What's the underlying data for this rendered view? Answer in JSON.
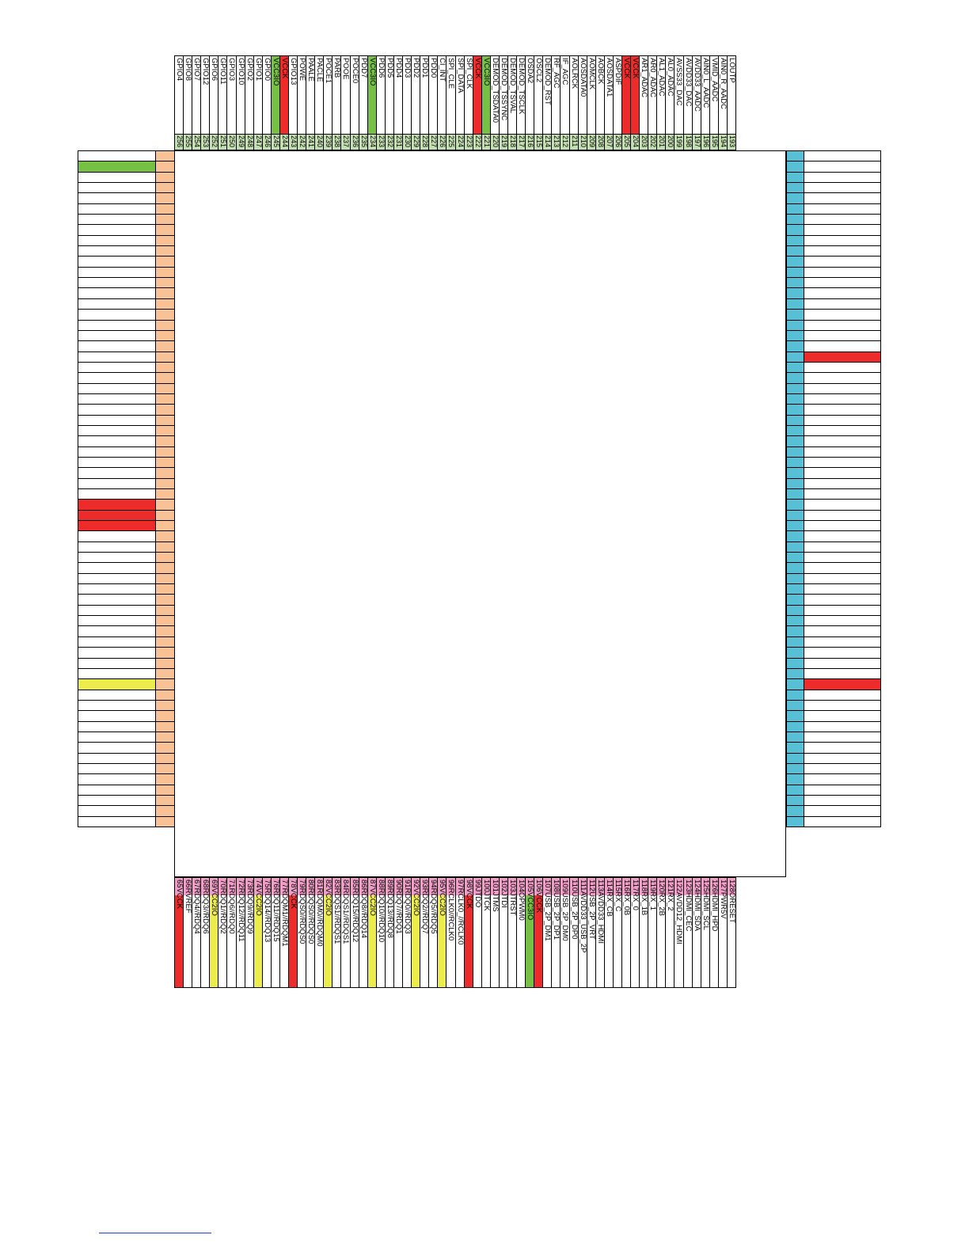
{
  "colors": {
    "red": "#ee2b2b",
    "green": "#76c043",
    "yellow": "#ecec4c",
    "top_pad": "#c3dfb1",
    "bottom_pad": "#f09ec8",
    "left_pad": "#f8c196",
    "right_pad": "#58c0d6",
    "white": "#ffffff"
  },
  "top_pins": [
    {
      "num": "256",
      "label": "GPIO4",
      "color": "white"
    },
    {
      "num": "255",
      "label": "GPIO8",
      "color": "white"
    },
    {
      "num": "254",
      "label": "GPIO7",
      "color": "white"
    },
    {
      "num": "253",
      "label": "GPIO12",
      "color": "white"
    },
    {
      "num": "252",
      "label": "GPIO6",
      "color": "white"
    },
    {
      "num": "251",
      "label": "GPIO11",
      "color": "white"
    },
    {
      "num": "250",
      "label": "GPIO3",
      "color": "white"
    },
    {
      "num": "249",
      "label": "GPIO10",
      "color": "white"
    },
    {
      "num": "248",
      "label": "GPIO2",
      "color": "white"
    },
    {
      "num": "247",
      "label": "GPIO1",
      "color": "white"
    },
    {
      "num": "246",
      "label": "GPIO0",
      "color": "white"
    },
    {
      "num": "245",
      "label": "VCC3IO",
      "color": "green"
    },
    {
      "num": "244",
      "label": "VCCK",
      "color": "red"
    },
    {
      "num": "243",
      "label": "GPIO13",
      "color": "white"
    },
    {
      "num": "242",
      "label": "POWE",
      "color": "white"
    },
    {
      "num": "241",
      "label": "PAALE",
      "color": "white"
    },
    {
      "num": "240",
      "label": "PACLE",
      "color": "white"
    },
    {
      "num": "239",
      "label": "POCE1",
      "color": "white"
    },
    {
      "num": "238",
      "label": "PARB",
      "color": "white"
    },
    {
      "num": "237",
      "label": "POOE",
      "color": "white"
    },
    {
      "num": "236",
      "label": "POCE0",
      "color": "white"
    },
    {
      "num": "235",
      "label": "PDD7",
      "color": "white"
    },
    {
      "num": "234",
      "label": "VCC3IO",
      "color": "green"
    },
    {
      "num": "233",
      "label": "PDD6",
      "color": "white"
    },
    {
      "num": "232",
      "label": "PDD5",
      "color": "white"
    },
    {
      "num": "231",
      "label": "PDD4",
      "color": "white"
    },
    {
      "num": "230",
      "label": "PDD3",
      "color": "white"
    },
    {
      "num": "229",
      "label": "PDD2",
      "color": "white"
    },
    {
      "num": "228",
      "label": "PDD1",
      "color": "white"
    },
    {
      "num": "227",
      "label": "PDD0",
      "color": "white"
    },
    {
      "num": "226",
      "label": "CI_INT",
      "color": "white"
    },
    {
      "num": "225",
      "label": "SPI_CLE",
      "color": "white"
    },
    {
      "num": "224",
      "label": "SPI_DATA",
      "color": "white"
    },
    {
      "num": "223",
      "label": "SPI_CLK",
      "color": "white"
    },
    {
      "num": "222",
      "label": "VCCK",
      "color": "red"
    },
    {
      "num": "221",
      "label": "VCC3IO",
      "color": "green"
    },
    {
      "num": "220",
      "label": "DEMOD_TSDATA0",
      "color": "white"
    },
    {
      "num": "219",
      "label": "DEMOD_TSSYNC",
      "color": "white"
    },
    {
      "num": "218",
      "label": "DEMOD_TSVAL",
      "color": "white"
    },
    {
      "num": "217",
      "label": "DEMOD_TSCLK",
      "color": "white"
    },
    {
      "num": "216",
      "label": "OSDA2",
      "color": "white"
    },
    {
      "num": "215",
      "label": "OSCL2",
      "color": "white"
    },
    {
      "num": "214",
      "label": "DEMOD_RST",
      "color": "white"
    },
    {
      "num": "213",
      "label": "RF_AGC",
      "color": "white"
    },
    {
      "num": "212",
      "label": "IF_AGC",
      "color": "white"
    },
    {
      "num": "211",
      "label": "AOLRCK",
      "color": "white"
    },
    {
      "num": "210",
      "label": "AOSDATA0",
      "color": "white"
    },
    {
      "num": "209",
      "label": "AOMCLK",
      "color": "white"
    },
    {
      "num": "208",
      "label": "AOBCK",
      "color": "white"
    },
    {
      "num": "207",
      "label": "AOSDATA1",
      "color": "white"
    },
    {
      "num": "206",
      "label": "ASPDIF",
      "color": "white"
    },
    {
      "num": "205",
      "label": "VCCK",
      "color": "red"
    },
    {
      "num": "204",
      "label": "VCCK",
      "color": "red"
    },
    {
      "num": "203",
      "label": "AR1_ADAC",
      "color": "white"
    },
    {
      "num": "202",
      "label": "AR0_ADAC",
      "color": "white"
    },
    {
      "num": "201",
      "label": "AL1_ADAC",
      "color": "white"
    },
    {
      "num": "200",
      "label": "AL0_ADAC",
      "color": "white"
    },
    {
      "num": "199",
      "label": "AVSS33_DAC",
      "color": "white"
    },
    {
      "num": "198",
      "label": "AVDD33_DAC",
      "color": "white"
    },
    {
      "num": "197",
      "label": "AVDD33_AADC",
      "color": "white"
    },
    {
      "num": "196",
      "label": "AIN0_L_AADC",
      "color": "white"
    },
    {
      "num": "195",
      "label": "VMID_AADC",
      "color": "white"
    },
    {
      "num": "194",
      "label": "AIN0_R_AADC",
      "color": "white"
    },
    {
      "num": "193",
      "label": "LOUTP",
      "color": "white"
    }
  ],
  "bottom_pins": [
    {
      "num": "65",
      "label": "VCCK",
      "color": "red"
    },
    {
      "num": "66",
      "label": "RVREF",
      "color": "white"
    },
    {
      "num": "67",
      "label": "RDQ4//RDQ4",
      "color": "white"
    },
    {
      "num": "68",
      "label": "RDQ3//RDQ6",
      "color": "white"
    },
    {
      "num": "69",
      "label": "VCC2IO",
      "color": "yellow"
    },
    {
      "num": "70",
      "label": "RDQ1//RDQ2",
      "color": "white"
    },
    {
      "num": "71",
      "label": "RDQ6//RDQ0",
      "color": "white"
    },
    {
      "num": "72",
      "label": "RDQ12//RDQ11",
      "color": "white"
    },
    {
      "num": "73",
      "label": "RDQ9//RDQ9",
      "color": "white"
    },
    {
      "num": "74",
      "label": "VCC2IO",
      "color": "yellow"
    },
    {
      "num": "75",
      "label": "RDQ14//RDQ13",
      "color": "white"
    },
    {
      "num": "76",
      "label": "RDQ11//RDQ15",
      "color": "white"
    },
    {
      "num": "77",
      "label": "RDQM1//RDQM1",
      "color": "white"
    },
    {
      "num": "78",
      "label": "VCCK",
      "color": "red"
    },
    {
      "num": "79",
      "label": "RDQS0//RDQS0",
      "color": "white"
    },
    {
      "num": "80",
      "label": "RDQS0//RDQS0",
      "color": "white"
    },
    {
      "num": "81",
      "label": "RDQM0//RDQM0",
      "color": "white"
    },
    {
      "num": "82",
      "label": "VCC2IO",
      "color": "yellow"
    },
    {
      "num": "83",
      "label": "RDQS1//RDQS1",
      "color": "white"
    },
    {
      "num": "84",
      "label": "RDQS1//RDQS1",
      "color": "white"
    },
    {
      "num": "85",
      "label": "RDQ15//RDQ12",
      "color": "white"
    },
    {
      "num": "86",
      "label": "RDQ8//RDQ14",
      "color": "white"
    },
    {
      "num": "87",
      "label": "VCC2IO",
      "color": "yellow"
    },
    {
      "num": "88",
      "label": "RDQ10//RDQ10",
      "color": "white"
    },
    {
      "num": "89",
      "label": "RDQ13//RDQ8",
      "color": "white"
    },
    {
      "num": "90",
      "label": "RDQ7//RDQ1",
      "color": "white"
    },
    {
      "num": "91",
      "label": "RDQ0//RDQ3",
      "color": "white"
    },
    {
      "num": "92",
      "label": "VCC2IO",
      "color": "yellow"
    },
    {
      "num": "93",
      "label": "RDQ2//RDQ7",
      "color": "white"
    },
    {
      "num": "94",
      "label": "RDQ5//RDQ5",
      "color": "white"
    },
    {
      "num": "95",
      "label": "VCC2IO",
      "color": "yellow"
    },
    {
      "num": "96",
      "label": "RCLK0//RCLK0",
      "color": "white"
    },
    {
      "num": "97",
      "label": "RCLK0_//RCLK0",
      "color": "white"
    },
    {
      "num": "98",
      "label": "VCCK",
      "color": "red"
    },
    {
      "num": "99",
      "label": "JTDO",
      "color": "white"
    },
    {
      "num": "100",
      "label": "JTCK",
      "color": "white"
    },
    {
      "num": "101",
      "label": "JTMS",
      "color": "white"
    },
    {
      "num": "102",
      "label": "JTDI",
      "color": "white"
    },
    {
      "num": "103",
      "label": "JTRST",
      "color": "white"
    },
    {
      "num": "104",
      "label": "OPWM0",
      "color": "white"
    },
    {
      "num": "105",
      "label": "VCC3IO",
      "color": "green"
    },
    {
      "num": "106",
      "label": "VCCK",
      "color": "red"
    },
    {
      "num": "107",
      "label": "USB_2P_DM1",
      "color": "white"
    },
    {
      "num": "108",
      "label": "USB_2P_DP1",
      "color": "white"
    },
    {
      "num": "109",
      "label": "USB_2P_DM0",
      "color": "white"
    },
    {
      "num": "110",
      "label": "USB_2P_DP0",
      "color": "white"
    },
    {
      "num": "111",
      "label": "AVDD33_USB_2P",
      "color": "white"
    },
    {
      "num": "112",
      "label": "USB_2P_VRT",
      "color": "white"
    },
    {
      "num": "113",
      "label": "AVDD33_HDMI",
      "color": "white"
    },
    {
      "num": "114",
      "label": "RX_CB",
      "color": "white"
    },
    {
      "num": "115",
      "label": "RX_C",
      "color": "white"
    },
    {
      "num": "116",
      "label": "RX_0B",
      "color": "white"
    },
    {
      "num": "117",
      "label": "RX_0",
      "color": "white"
    },
    {
      "num": "118",
      "label": "RX_1B",
      "color": "white"
    },
    {
      "num": "119",
      "label": "RX_1",
      "color": "white"
    },
    {
      "num": "120",
      "label": "RX_2B",
      "color": "white"
    },
    {
      "num": "121",
      "label": "RX_2",
      "color": "white"
    },
    {
      "num": "122",
      "label": "AVDD12_HDMI",
      "color": "white"
    },
    {
      "num": "123",
      "label": "HDMI_CEC",
      "color": "white"
    },
    {
      "num": "124",
      "label": "HDMI_SDA",
      "color": "white"
    },
    {
      "num": "125",
      "label": "HDMI_SCL",
      "color": "white"
    },
    {
      "num": "126",
      "label": "HDMI_HPD",
      "color": "white"
    },
    {
      "num": "127",
      "label": "PWR5V",
      "color": "white"
    },
    {
      "num": "128",
      "label": "ORESET",
      "color": "white"
    }
  ],
  "left_rows": [
    "white",
    "green",
    "white",
    "white",
    "white",
    "white",
    "white",
    "white",
    "white",
    "white",
    "white",
    "white",
    "white",
    "white",
    "white",
    "white",
    "white",
    "white",
    "white",
    "white",
    "white",
    "white",
    "white",
    "white",
    "white",
    "white",
    "white",
    "white",
    "white",
    "white",
    "white",
    "white",
    "white",
    "red",
    "red",
    "red",
    "white",
    "white",
    "white",
    "white",
    "white",
    "white",
    "white",
    "white",
    "white",
    "white",
    "white",
    "white",
    "white",
    "white",
    "yellow",
    "white",
    "white",
    "white",
    "white",
    "white",
    "white",
    "white",
    "white",
    "white",
    "white",
    "white",
    "white",
    "white"
  ],
  "right_rows": [
    "white",
    "white",
    "white",
    "white",
    "white",
    "white",
    "white",
    "white",
    "white",
    "white",
    "white",
    "white",
    "white",
    "white",
    "white",
    "white",
    "white",
    "white",
    "white",
    "red",
    "white",
    "white",
    "white",
    "white",
    "white",
    "white",
    "white",
    "white",
    "white",
    "white",
    "white",
    "white",
    "white",
    "white",
    "white",
    "white",
    "white",
    "white",
    "white",
    "white",
    "white",
    "white",
    "white",
    "white",
    "white",
    "white",
    "white",
    "white",
    "white",
    "white",
    "red",
    "white",
    "white",
    "white",
    "white",
    "white",
    "white",
    "white",
    "white",
    "white",
    "white",
    "white",
    "white",
    "white"
  ]
}
